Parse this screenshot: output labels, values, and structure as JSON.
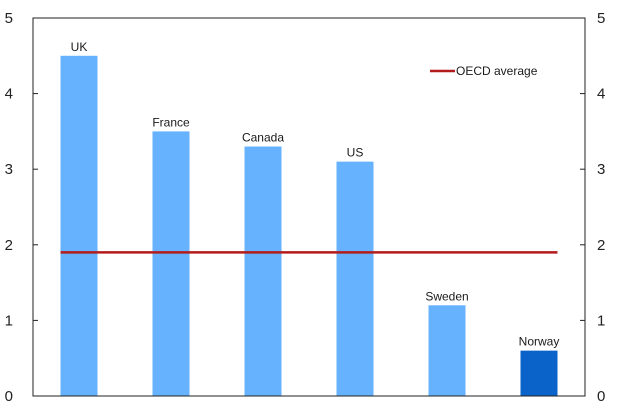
{
  "chart_data": {
    "type": "bar",
    "categories": [
      "UK",
      "France",
      "Canada",
      "US",
      "Sweden",
      "Norway"
    ],
    "values": [
      4.5,
      3.5,
      3.3,
      3.1,
      1.2,
      0.6
    ],
    "ylim": [
      0,
      5
    ],
    "yticks": [
      0,
      1,
      2,
      3,
      4,
      5
    ],
    "bar_colors": [
      "#66b2ff",
      "#66b2ff",
      "#66b2ff",
      "#66b2ff",
      "#66b2ff",
      "#0a63c9"
    ],
    "reference_line": {
      "name": "OECD average",
      "value": 1.9,
      "color": "#b31b1b"
    },
    "legend": {
      "position": "top-right",
      "entries": [
        "OECD average"
      ]
    },
    "grid": false,
    "xlabel": "",
    "ylabel": ""
  }
}
